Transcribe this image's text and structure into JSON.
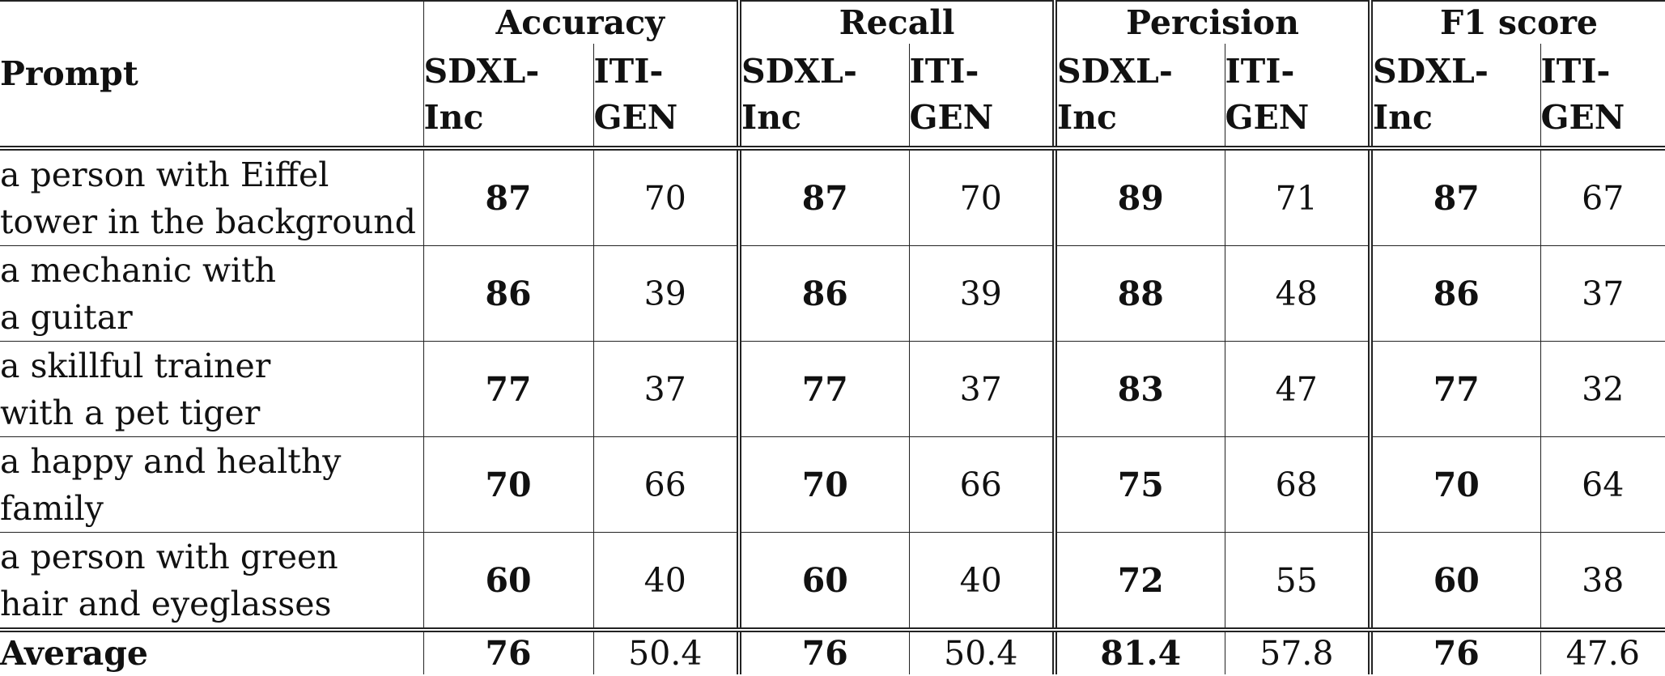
{
  "header": {
    "prompt_label": "Prompt",
    "groups": [
      "Accuracy",
      "Recall",
      "Percision",
      "F1 score"
    ],
    "sub_a": "SDXL-\nInc",
    "sub_b": "ITI-\nGEN"
  },
  "rows": [
    {
      "prompt": "a person with Eiffel\ntower in the background",
      "v": [
        "87",
        "70",
        "87",
        "70",
        "89",
        "71",
        "87",
        "67"
      ]
    },
    {
      "prompt": "a mechanic with\na guitar",
      "v": [
        "86",
        "39",
        "86",
        "39",
        "88",
        "48",
        "86",
        "37"
      ]
    },
    {
      "prompt": "a skillful trainer\nwith a pet tiger",
      "v": [
        "77",
        "37",
        "77",
        "37",
        "83",
        "47",
        "77",
        "32"
      ]
    },
    {
      "prompt": "a happy and healthy\nfamily",
      "v": [
        "70",
        "66",
        "70",
        "66",
        "75",
        "68",
        "70",
        "64"
      ]
    },
    {
      "prompt": "a person with green\nhair and eyeglasses",
      "v": [
        "60",
        "40",
        "60",
        "40",
        "72",
        "55",
        "60",
        "38"
      ]
    }
  ],
  "average": {
    "label": "Average",
    "v": [
      "76",
      "50.4",
      "76",
      "50.4",
      "81.4",
      "57.8",
      "76",
      "47.6"
    ]
  }
}
